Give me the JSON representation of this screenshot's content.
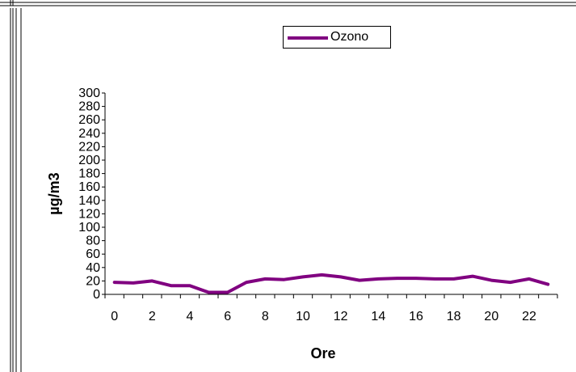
{
  "chart_data": {
    "type": "line",
    "title": "",
    "xlabel": "Ore",
    "ylabel": "µg/m3",
    "x": [
      0,
      1,
      2,
      3,
      4,
      5,
      6,
      7,
      8,
      9,
      10,
      11,
      12,
      13,
      14,
      15,
      16,
      17,
      18,
      19,
      20,
      21,
      22,
      23
    ],
    "series": [
      {
        "name": "Ozono",
        "color": "#800080",
        "values": [
          18,
          17,
          20,
          13,
          13,
          3,
          3,
          18,
          23,
          22,
          26,
          29,
          26,
          21,
          23,
          24,
          24,
          23,
          23,
          27,
          21,
          18,
          23,
          15
        ]
      }
    ],
    "xlim": [
      -0.5,
      23.5
    ],
    "ylim": [
      0,
      300
    ],
    "yticks": [
      0,
      20,
      40,
      60,
      80,
      100,
      120,
      140,
      160,
      180,
      200,
      220,
      240,
      260,
      280,
      300
    ],
    "xticks": [
      0,
      2,
      4,
      6,
      8,
      10,
      12,
      14,
      16,
      18,
      20,
      22
    ],
    "grid": false,
    "legend_position": "top-center"
  },
  "colors": {
    "frame": "#000000",
    "background": "#ffffff"
  }
}
